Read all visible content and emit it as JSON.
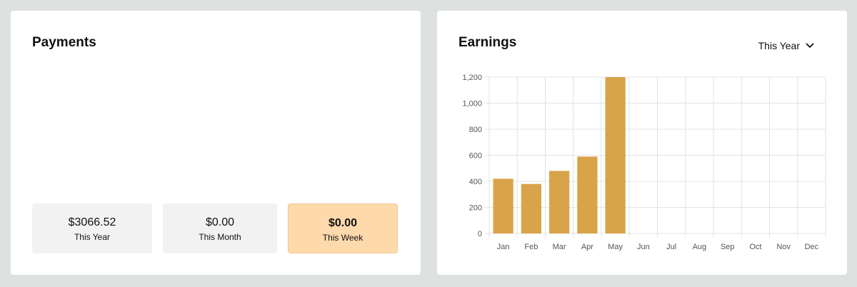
{
  "payments": {
    "title": "Payments",
    "tiles": [
      {
        "amount": "$3066.52",
        "label": "This Year"
      },
      {
        "amount": "$0.00",
        "label": "This Month"
      },
      {
        "amount": "$0.00",
        "label": "This Week"
      }
    ]
  },
  "earnings": {
    "title": "Earnings",
    "range_select": {
      "selected": "This Year",
      "icon": "chevron-down-icon"
    }
  },
  "colors": {
    "bar": "#d9a34a",
    "active_tile": "#fdd9ac",
    "grid": "#e3e3e3"
  },
  "chart_data": {
    "type": "bar",
    "title": "",
    "xlabel": "",
    "ylabel": "",
    "categories": [
      "Jan",
      "Feb",
      "Mar",
      "Apr",
      "May",
      "Jun",
      "Jul",
      "Aug",
      "Sep",
      "Oct",
      "Nov",
      "Dec"
    ],
    "values": [
      420,
      380,
      480,
      590,
      1200,
      0,
      0,
      0,
      0,
      0,
      0,
      0
    ],
    "ylim": [
      0,
      1200
    ],
    "yticks": [
      0,
      200,
      400,
      600,
      800,
      1000,
      1200
    ],
    "ytick_labels": [
      "0",
      "200",
      "400",
      "600",
      "800",
      "1,000",
      "1,200"
    ],
    "grid": true,
    "legend": "none"
  }
}
